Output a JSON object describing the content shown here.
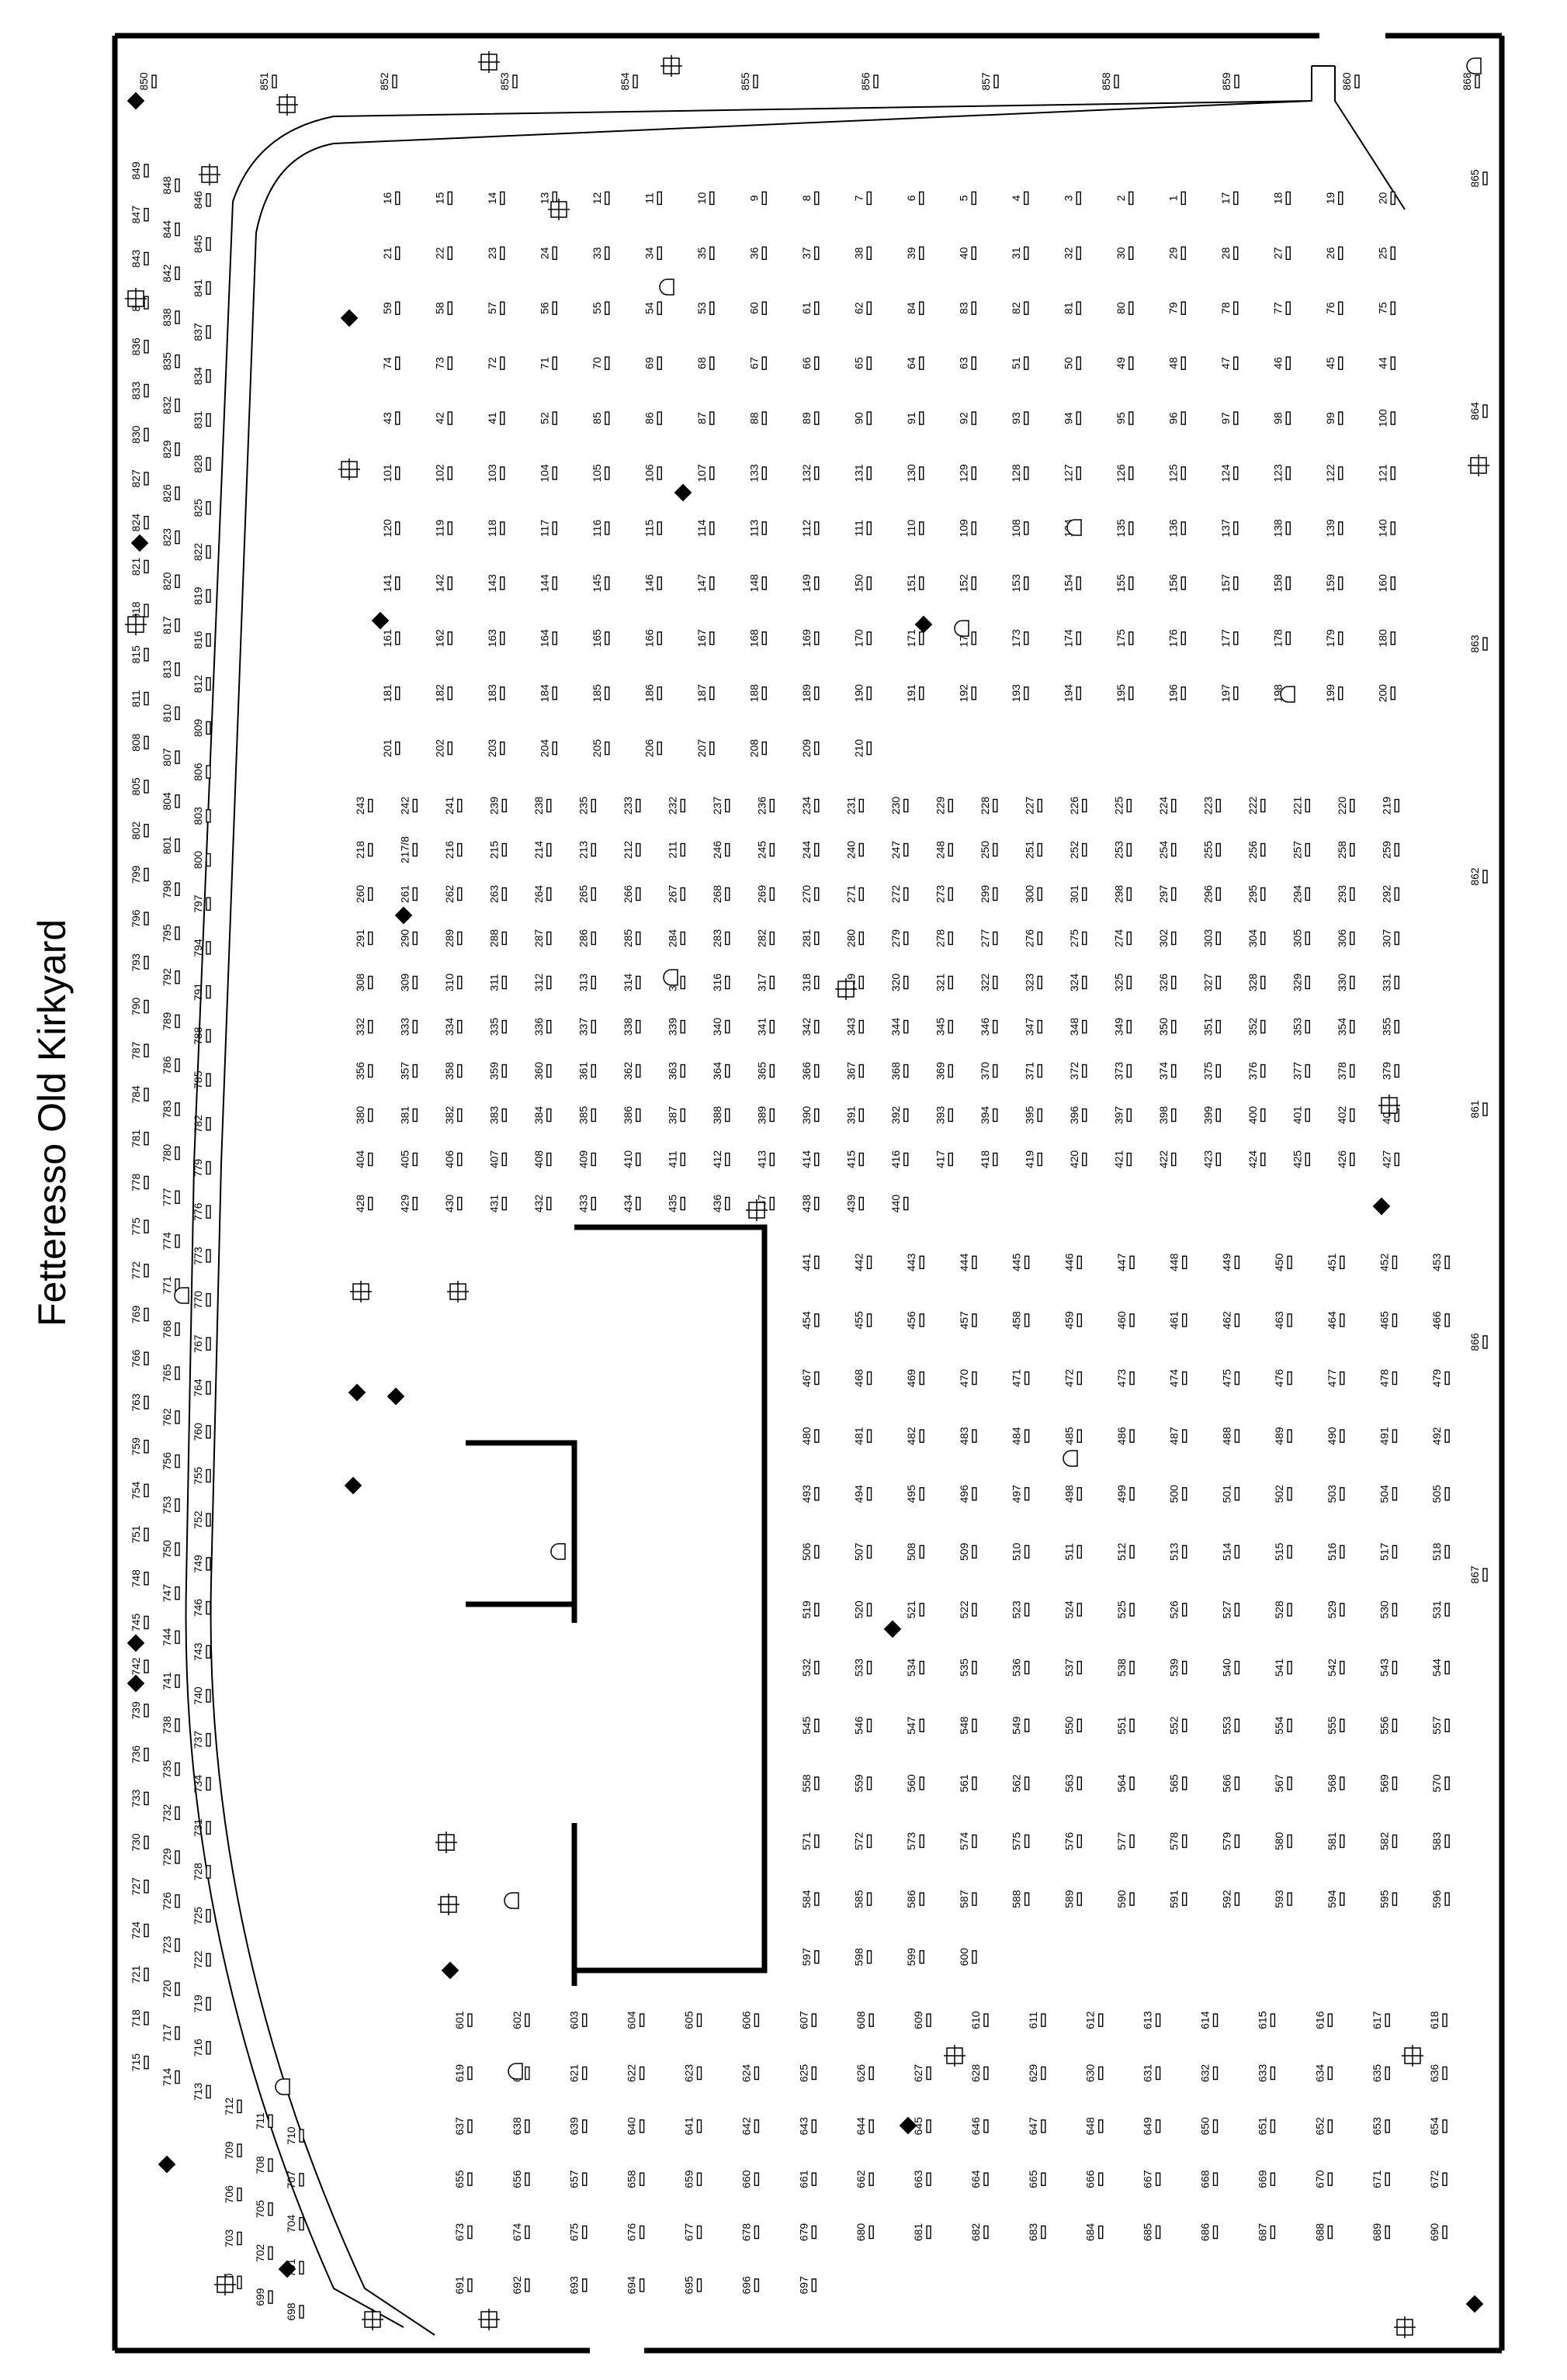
{
  "title": "Fetteresso Old Kirkyard",
  "plots_row_top": [
    "850",
    "851",
    "852",
    "853",
    "854",
    "855",
    "856",
    "857",
    "858",
    "859",
    "860",
    "868"
  ],
  "plots_left_column": [
    "849",
    "848",
    "846",
    "847",
    "844",
    "845",
    "843",
    "842",
    "841",
    "840",
    "838",
    "837",
    "836",
    "835",
    "834",
    "833",
    "832",
    "831",
    "830",
    "829",
    "828",
    "827",
    "826",
    "825",
    "824",
    "823",
    "822",
    "821",
    "820",
    "819",
    "818",
    "817",
    "816",
    "815",
    "813",
    "812",
    "811",
    "810",
    "809",
    "808",
    "807",
    "806",
    "805",
    "804",
    "803",
    "802",
    "801",
    "800",
    "799",
    "798",
    "797",
    "796",
    "795",
    "794",
    "793",
    "792",
    "791",
    "790",
    "789",
    "788",
    "787",
    "786",
    "785",
    "784",
    "783",
    "782",
    "781",
    "780",
    "779",
    "778",
    "777",
    "776",
    "775",
    "774",
    "773",
    "772",
    "771",
    "770",
    "769",
    "768",
    "767",
    "766",
    "765",
    "764",
    "763",
    "762",
    "760",
    "759",
    "756",
    "755",
    "754",
    "753",
    "752",
    "751",
    "750",
    "749",
    "748",
    "747",
    "746",
    "745",
    "744",
    "743",
    "742",
    "741",
    "740",
    "739",
    "738",
    "737",
    "736",
    "735",
    "734",
    "733",
    "732",
    "731",
    "730",
    "729",
    "728",
    "727",
    "726",
    "725",
    "724",
    "723",
    "722",
    "721",
    "720",
    "719",
    "718",
    "717",
    "716",
    "715",
    "714",
    "713",
    "712",
    "711",
    "710",
    "709",
    "708",
    "707",
    "706",
    "705",
    "704",
    "703",
    "702",
    "701",
    "700",
    "699",
    "698"
  ],
  "plots_right_column": [
    "865",
    "864",
    "863",
    "862",
    "861",
    "866",
    "867"
  ],
  "plots_grid_a": [
    "16",
    "15",
    "14",
    "13",
    "12",
    "11",
    "10",
    "9",
    "8",
    "7",
    "6",
    "5",
    "4",
    "3",
    "2",
    "1",
    "17",
    "18",
    "19",
    "20",
    "21",
    "22",
    "23",
    "24",
    "33",
    "34",
    "35",
    "36",
    "37",
    "38",
    "39",
    "40",
    "31",
    "32",
    "30",
    "29",
    "28",
    "27",
    "26",
    "25",
    "59",
    "58",
    "57",
    "56",
    "55",
    "54",
    "53",
    "60",
    "61",
    "62",
    "84",
    "83",
    "82",
    "81",
    "80",
    "79",
    "78",
    "77",
    "76",
    "75",
    "74",
    "73",
    "72",
    "71",
    "70",
    "69",
    "68",
    "67",
    "66",
    "65",
    "64",
    "63",
    "51",
    "50",
    "49",
    "48",
    "47",
    "46",
    "45",
    "44",
    "43",
    "42",
    "41",
    "52",
    "85",
    "86",
    "87",
    "88",
    "89",
    "90",
    "91",
    "92",
    "93",
    "94",
    "95",
    "96",
    "97",
    "98",
    "99",
    "100",
    "101",
    "102",
    "103",
    "104",
    "105",
    "106",
    "107",
    "133",
    "132",
    "131",
    "130",
    "129",
    "128",
    "127",
    "126",
    "125",
    "124",
    "123",
    "122",
    "121",
    "120",
    "119",
    "118",
    "117",
    "116",
    "115",
    "114",
    "113",
    "112",
    "111",
    "110",
    "109",
    "108",
    "134",
    "135",
    "136",
    "137",
    "138",
    "139",
    "140",
    "141",
    "142",
    "143",
    "144",
    "145",
    "146",
    "147",
    "148",
    "149",
    "150",
    "151",
    "152",
    "153",
    "154",
    "155",
    "156",
    "157",
    "158",
    "159",
    "160",
    "161",
    "162",
    "163",
    "164",
    "165",
    "166",
    "167",
    "168",
    "169",
    "170",
    "171",
    "172",
    "173",
    "174",
    "175",
    "176",
    "177",
    "178",
    "179",
    "180",
    "181",
    "182",
    "183",
    "184",
    "185",
    "186",
    "187",
    "188",
    "189",
    "190",
    "191",
    "192",
    "193",
    "194",
    "195",
    "196",
    "197",
    "198",
    "199",
    "200",
    "201",
    "202",
    "203",
    "204",
    "205",
    "206",
    "207",
    "208",
    "209",
    "210"
  ],
  "plots_grid_b": [
    "243",
    "242",
    "241",
    "239",
    "238",
    "235",
    "233",
    "232",
    "237",
    "236",
    "234",
    "231",
    "230",
    "229",
    "228",
    "227",
    "226",
    "225",
    "224",
    "223",
    "222",
    "221",
    "220",
    "219",
    "218",
    "217/8",
    "216",
    "215",
    "214",
    "213",
    "212",
    "211",
    "246",
    "245",
    "244",
    "240",
    "247",
    "248",
    "250",
    "251",
    "252",
    "253",
    "254",
    "255",
    "256",
    "257",
    "258",
    "259",
    "260",
    "261",
    "262",
    "263",
    "264",
    "265",
    "266",
    "267",
    "268",
    "269",
    "270",
    "271",
    "272",
    "273",
    "299",
    "300",
    "301",
    "298",
    "297",
    "296",
    "295",
    "294",
    "293",
    "292",
    "291",
    "290",
    "289",
    "288",
    "287",
    "286",
    "285",
    "284",
    "283",
    "282",
    "281",
    "280",
    "279",
    "278",
    "277",
    "276",
    "275",
    "274",
    "302",
    "303",
    "304",
    "305",
    "306",
    "307",
    "308",
    "309",
    "310",
    "311",
    "312",
    "313",
    "314",
    "315",
    "316",
    "317",
    "318",
    "319",
    "320",
    "321",
    "322",
    "323",
    "324",
    "325",
    "326",
    "327",
    "328",
    "329",
    "330",
    "331",
    "332",
    "333",
    "334",
    "335",
    "336",
    "337",
    "338",
    "339",
    "340",
    "341",
    "342",
    "343",
    "344",
    "345",
    "346",
    "347",
    "348",
    "349",
    "350",
    "351",
    "352",
    "353",
    "354",
    "355",
    "356",
    "357",
    "358",
    "359",
    "360",
    "361",
    "362",
    "363",
    "364",
    "365",
    "366",
    "367",
    "368",
    "369",
    "370",
    "371",
    "372",
    "373",
    "374",
    "375",
    "376",
    "377",
    "378",
    "379",
    "380",
    "381",
    "382",
    "383",
    "384",
    "385",
    "386",
    "387",
    "388",
    "389",
    "390",
    "391",
    "392",
    "393",
    "394",
    "395",
    "396",
    "397",
    "398",
    "399",
    "400",
    "401",
    "402",
    "403",
    "404",
    "405",
    "406",
    "407",
    "408",
    "409",
    "410",
    "411",
    "412",
    "413",
    "414",
    "415",
    "416",
    "417",
    "418",
    "419",
    "420",
    "421",
    "422",
    "423",
    "424",
    "425",
    "426",
    "427",
    "428",
    "429",
    "430",
    "431",
    "432",
    "433",
    "434",
    "435",
    "436",
    "437",
    "438",
    "439",
    "440"
  ],
  "plots_grid_c": [
    "441",
    "442",
    "443",
    "444",
    "445",
    "446",
    "447",
    "448",
    "449",
    "450",
    "451",
    "452",
    "453",
    "454",
    "455",
    "456",
    "457",
    "458",
    "459",
    "460",
    "461",
    "462",
    "463",
    "464",
    "465",
    "466",
    "467",
    "468",
    "469",
    "470",
    "471",
    "472",
    "473",
    "474",
    "475",
    "476",
    "477",
    "478",
    "479",
    "480",
    "481",
    "482",
    "483",
    "484",
    "485",
    "486",
    "487",
    "488",
    "489",
    "490",
    "491",
    "492",
    "493",
    "494",
    "495",
    "496",
    "497",
    "498",
    "499",
    "500",
    "501",
    "502",
    "503",
    "504",
    "505",
    "506",
    "507",
    "508",
    "509",
    "510",
    "511",
    "512",
    "513",
    "514",
    "515",
    "516",
    "517",
    "518",
    "519",
    "520",
    "521",
    "522",
    "523",
    "524",
    "525",
    "526",
    "527",
    "528",
    "529",
    "530",
    "531",
    "532",
    "533",
    "534",
    "535",
    "536",
    "537",
    "538",
    "539",
    "540",
    "541",
    "542",
    "543",
    "544",
    "545",
    "546",
    "547",
    "548",
    "549",
    "550",
    "551",
    "552",
    "553",
    "554",
    "555",
    "556",
    "557",
    "558",
    "559",
    "560",
    "561",
    "562",
    "563",
    "564",
    "565",
    "566",
    "567",
    "568",
    "569",
    "570",
    "571",
    "572",
    "573",
    "574",
    "575",
    "576",
    "577",
    "578",
    "579",
    "580",
    "581",
    "582",
    "583",
    "584",
    "585",
    "586",
    "587",
    "588",
    "589",
    "590",
    "591",
    "592",
    "593",
    "594",
    "595",
    "596",
    "597",
    "598",
    "599",
    "600"
  ],
  "plots_grid_d": [
    "601",
    "602",
    "603",
    "604",
    "605",
    "606",
    "607",
    "608",
    "609",
    "610",
    "611",
    "612",
    "613",
    "614",
    "615",
    "616",
    "617",
    "618",
    "619",
    "620",
    "621",
    "622",
    "623",
    "624",
    "625",
    "626",
    "627",
    "628",
    "629",
    "630",
    "631",
    "632",
    "633",
    "634",
    "635",
    "636",
    "637",
    "638",
    "639",
    "640",
    "641",
    "642",
    "643",
    "644",
    "645",
    "646",
    "647",
    "648",
    "649",
    "650",
    "651",
    "652",
    "653",
    "654",
    "655",
    "656",
    "657",
    "658",
    "659",
    "660",
    "661",
    "662",
    "663",
    "664",
    "665",
    "666",
    "667",
    "668",
    "669",
    "670",
    "671",
    "672",
    "673",
    "674",
    "675",
    "676",
    "677",
    "678",
    "679",
    "680",
    "681",
    "682",
    "683",
    "684",
    "685",
    "686",
    "687",
    "688",
    "689",
    "690",
    "691",
    "692",
    "693",
    "694",
    "695",
    "696",
    "697"
  ],
  "symbol_legend": {
    "diamond": "diamond-marker-icon",
    "cross": "cross-marker-icon",
    "arch": "arch-marker-icon"
  }
}
